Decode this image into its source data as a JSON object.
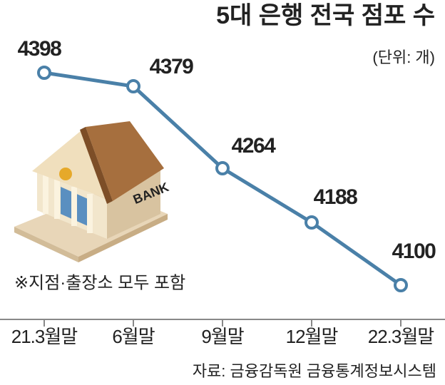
{
  "chart_data": {
    "type": "line",
    "title": "5대 은행 전국 점포 수",
    "unit": "(단위: 개)",
    "note": "※지점·출장소 모두 포함",
    "source": "자료: 금융감독원 금융통계정보시스템",
    "illustration_text": "BANK",
    "categories": [
      "21.3월말",
      "6월말",
      "9월말",
      "12월말",
      "22.3월말"
    ],
    "values": [
      4398,
      4379,
      4264,
      4188,
      4100
    ],
    "color": "#4a80a8"
  }
}
